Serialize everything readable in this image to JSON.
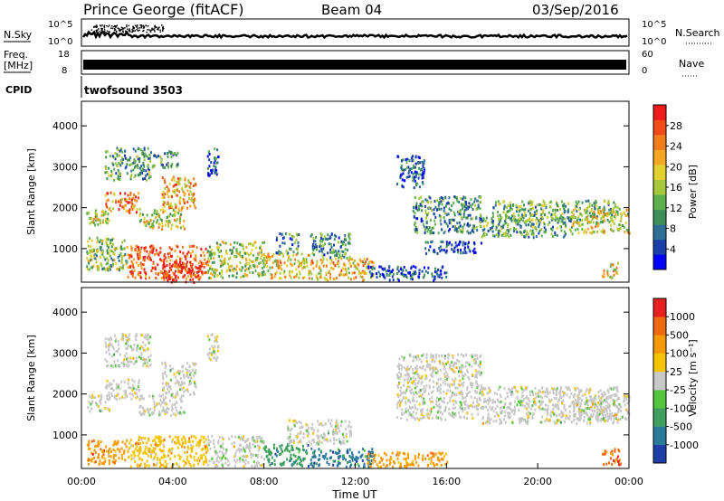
{
  "header": {
    "station": "Prince George (fitACF)",
    "beam": "Beam 04",
    "date": "03/Sep/2016"
  },
  "top_panels": {
    "nsky_label": "N.Sky",
    "nsky_ticks": [
      "10^5",
      "10^0"
    ],
    "nsky_right_ticks": [
      "10^5",
      "10^0"
    ],
    "nsearch_label": "N.Search",
    "freq_label_1": "Freq.",
    "freq_label_2": "[MHz]",
    "freq_ticks": [
      "18",
      "8"
    ],
    "nave_ticks": [
      "60",
      "0"
    ],
    "nave_label": "Nave",
    "cpid_label": "CPID",
    "cpid_value": "twofsound 3503"
  },
  "chart_data": [
    {
      "type": "heatmap",
      "name": "power",
      "ylabel": "Slant Range [km]",
      "yticks": [
        "1000",
        "2000",
        "3000",
        "4000"
      ],
      "ylim": [
        180,
        4600
      ],
      "xlim": [
        0,
        24
      ],
      "colorbar": {
        "label": "Power [dB]",
        "ticks": [
          "28",
          "24",
          "20",
          "16",
          "12",
          "8",
          "4"
        ],
        "colors": [
          "#0000ff",
          "#1a3fa8",
          "#2f6f96",
          "#3f8f5a",
          "#5fb04f",
          "#a6c83c",
          "#e0d030",
          "#f5a623",
          "#f07d1a",
          "#ef4a18",
          "#ee1c1c"
        ]
      },
      "regions": [
        {
          "t0": 0.2,
          "t1": 1.2,
          "r0": 1600,
          "r1": 2000,
          "level": 0.55
        },
        {
          "t0": 1.0,
          "t1": 2.5,
          "r0": 1900,
          "r1": 2400,
          "level": 0.75
        },
        {
          "t0": 2.5,
          "t1": 4.5,
          "r0": 1500,
          "r1": 2000,
          "level": 0.55
        },
        {
          "t0": 3.5,
          "t1": 5.0,
          "r0": 2000,
          "r1": 2800,
          "level": 0.7
        },
        {
          "t0": 1.0,
          "t1": 3.0,
          "r0": 2700,
          "r1": 3500,
          "level": 0.35
        },
        {
          "t0": 3.0,
          "t1": 4.2,
          "r0": 3000,
          "r1": 3400,
          "level": 0.3
        },
        {
          "t0": 5.5,
          "t1": 6.0,
          "r0": 2800,
          "r1": 3500,
          "level": 0.2
        },
        {
          "t0": 0.2,
          "t1": 2.0,
          "r0": 500,
          "r1": 1300,
          "level": 0.45
        },
        {
          "t0": 2.0,
          "t1": 5.5,
          "r0": 300,
          "r1": 1100,
          "level": 0.85
        },
        {
          "t0": 3.5,
          "t1": 5.2,
          "r0": 200,
          "r1": 700,
          "level": 0.95
        },
        {
          "t0": 5.5,
          "t1": 8.0,
          "r0": 300,
          "r1": 1200,
          "level": 0.5
        },
        {
          "t0": 8.0,
          "t1": 10.0,
          "r0": 300,
          "r1": 900,
          "level": 0.6
        },
        {
          "t0": 8.5,
          "t1": 9.5,
          "r0": 900,
          "r1": 1400,
          "level": 0.3
        },
        {
          "t0": 10.0,
          "t1": 12.8,
          "r0": 250,
          "r1": 800,
          "level": 0.65
        },
        {
          "t0": 10.0,
          "t1": 11.8,
          "r0": 800,
          "r1": 1400,
          "level": 0.3
        },
        {
          "t0": 13.8,
          "t1": 15.0,
          "r0": 2500,
          "r1": 3300,
          "level": 0.2
        },
        {
          "t0": 14.5,
          "t1": 17.5,
          "r0": 1400,
          "r1": 2300,
          "level": 0.3
        },
        {
          "t0": 17.5,
          "t1": 21.5,
          "r0": 1300,
          "r1": 1800,
          "level": 0.35
        },
        {
          "t0": 18.0,
          "t1": 23.5,
          "r0": 1700,
          "r1": 2200,
          "level": 0.4
        },
        {
          "t0": 21.5,
          "t1": 24.0,
          "r0": 1400,
          "r1": 2000,
          "level": 0.55
        },
        {
          "t0": 15.0,
          "t1": 17.5,
          "r0": 900,
          "r1": 1200,
          "level": 0.15
        },
        {
          "t0": 22.8,
          "t1": 23.5,
          "r0": 300,
          "r1": 700,
          "level": 0.6
        },
        {
          "t0": 12.5,
          "t1": 16.0,
          "r0": 250,
          "r1": 600,
          "level": 0.15
        }
      ]
    },
    {
      "type": "heatmap",
      "name": "velocity",
      "xlabel": "Time UT",
      "ylabel": "Slant Range [km]",
      "yticks": [
        "1000",
        "2000",
        "3000",
        "4000"
      ],
      "xticks": [
        "00:00",
        "04:00",
        "08:00",
        "12:00",
        "16:00",
        "20:00",
        "00:00"
      ],
      "ylim": [
        180,
        4600
      ],
      "xlim": [
        0,
        24
      ],
      "colorbar": {
        "label": "Velocity [m s⁻¹]",
        "ticks": [
          "1000",
          "500",
          "100",
          "25",
          "-25",
          "-100",
          "-500",
          "-1000"
        ],
        "colors": [
          "#1f3ea8",
          "#2a7a9a",
          "#3e9f5e",
          "#55c43f",
          "#c8c8c8",
          "#f5c400",
          "#f59a00",
          "#f06a10",
          "#e72020"
        ]
      },
      "regions": [
        {
          "t0": 0.2,
          "t1": 1.2,
          "r0": 1600,
          "r1": 2000,
          "level": 0.5
        },
        {
          "t0": 1.0,
          "t1": 2.5,
          "r0": 1900,
          "r1": 2400,
          "level": 0.5
        },
        {
          "t0": 2.5,
          "t1": 4.5,
          "r0": 1500,
          "r1": 2000,
          "level": 0.5
        },
        {
          "t0": 3.5,
          "t1": 5.0,
          "r0": 2000,
          "r1": 2800,
          "level": 0.5
        },
        {
          "t0": 1.0,
          "t1": 3.0,
          "r0": 2700,
          "r1": 3500,
          "level": 0.5
        },
        {
          "t0": 5.5,
          "t1": 6.0,
          "r0": 2800,
          "r1": 3500,
          "level": 0.5
        },
        {
          "t0": 0.2,
          "t1": 2.0,
          "r0": 300,
          "r1": 900,
          "level": 0.75
        },
        {
          "t0": 2.0,
          "t1": 5.5,
          "r0": 250,
          "r1": 1000,
          "level": 0.65
        },
        {
          "t0": 5.5,
          "t1": 8.0,
          "r0": 250,
          "r1": 1000,
          "level": 0.5
        },
        {
          "t0": 8.0,
          "t1": 10.0,
          "r0": 250,
          "r1": 800,
          "level": 0.25
        },
        {
          "t0": 10.0,
          "t1": 12.8,
          "r0": 250,
          "r1": 700,
          "level": 0.2
        },
        {
          "t0": 9.0,
          "t1": 11.8,
          "r0": 800,
          "r1": 1400,
          "level": 0.5
        },
        {
          "t0": 13.8,
          "t1": 17.5,
          "r0": 1400,
          "r1": 3000,
          "level": 0.5
        },
        {
          "t0": 17.5,
          "t1": 23.5,
          "r0": 1300,
          "r1": 2200,
          "level": 0.5
        },
        {
          "t0": 21.5,
          "t1": 24.0,
          "r0": 1400,
          "r1": 2000,
          "level": 0.55
        },
        {
          "t0": 22.8,
          "t1": 23.6,
          "r0": 300,
          "r1": 700,
          "level": 0.8
        },
        {
          "t0": 12.5,
          "t1": 16.0,
          "r0": 250,
          "r1": 600,
          "level": 0.7
        }
      ]
    }
  ]
}
